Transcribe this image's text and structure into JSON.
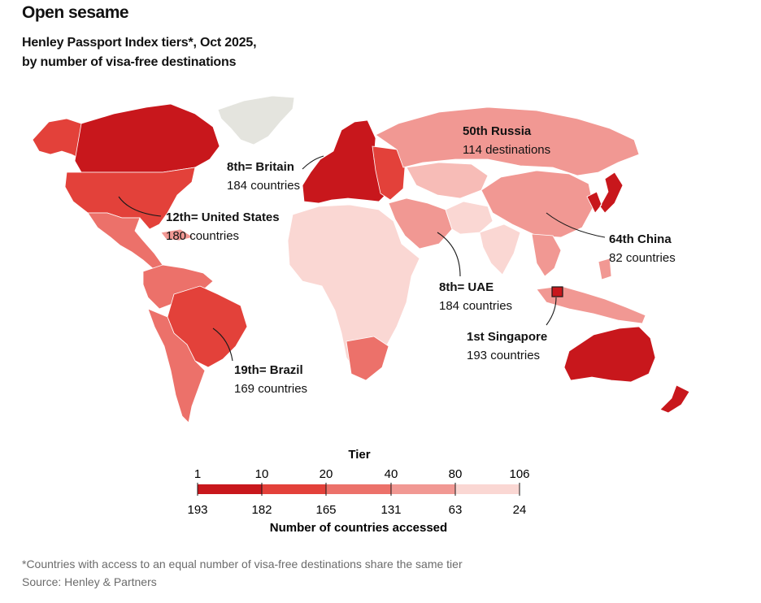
{
  "title": "Open sesame",
  "subtitle_line1": "Henley Passport Index tiers*, Oct 2025,",
  "subtitle_line2": "by number of visa-free destinations",
  "colors": {
    "tier1": "#c8171c",
    "tier2": "#e3413a",
    "tier3": "#ec716a",
    "tier4": "#f19893",
    "tier5": "#f7bcb7",
    "tier6": "#fad7d3",
    "nodata": "#e4e4de"
  },
  "annotations": {
    "russia": {
      "name": "50th Russia",
      "value": "114 destinations"
    },
    "britain": {
      "name": "8th= Britain",
      "value": "184 countries"
    },
    "usa": {
      "name": "12th= United States",
      "value": "180 countries"
    },
    "china": {
      "name": "64th China",
      "value": "82 countries"
    },
    "uae": {
      "name": "8th= UAE",
      "value": "184 countries"
    },
    "singapore": {
      "name": "1st Singapore",
      "value": "193 countries"
    },
    "brazil": {
      "name": "19th= Brazil",
      "value": "169 countries"
    }
  },
  "legend": {
    "title": "Tier",
    "tier_ticks": [
      "1",
      "10",
      "20",
      "40",
      "80",
      "106"
    ],
    "count_ticks": [
      "193",
      "182",
      "165",
      "131",
      "63",
      "24"
    ],
    "axis_label": "Number of countries accessed"
  },
  "footnote": "*Countries with access to an equal number of visa-free destinations share the same tier",
  "source": "Source: Henley & Partners"
}
